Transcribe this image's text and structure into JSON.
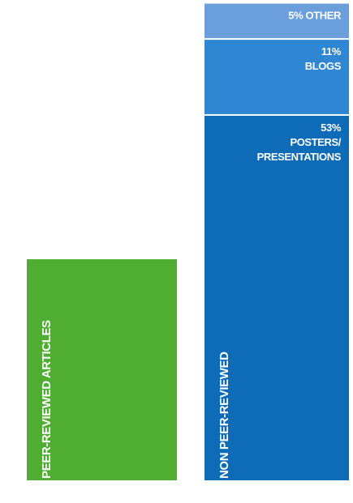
{
  "chart_data": {
    "type": "bar",
    "stacked": true,
    "categories": [
      "PEER-REVIEWED ARTICLES",
      "NON PEER-REVIEWED"
    ],
    "values": [
      32,
      68
    ],
    "value_labels": [
      "32%",
      "68%"
    ],
    "colors": [
      "#4fad32",
      "#0d6bb8"
    ],
    "breakdown": {
      "category": "NON PEER-REVIEWED",
      "segments": [
        {
          "label_lines": [
            "53%",
            "POSTERS/",
            "PRESENTATIONS"
          ],
          "value": 53,
          "color": "#0d6bb8"
        },
        {
          "label_lines": [
            "11%",
            "BLOGS"
          ],
          "value": 11,
          "color": "#2f86d2"
        },
        {
          "label_lines": [
            "5% OTHER"
          ],
          "value": 5,
          "color": "#6a9fdc"
        }
      ]
    },
    "ylim": [
      0,
      68
    ],
    "grid": false,
    "legend": "none"
  }
}
